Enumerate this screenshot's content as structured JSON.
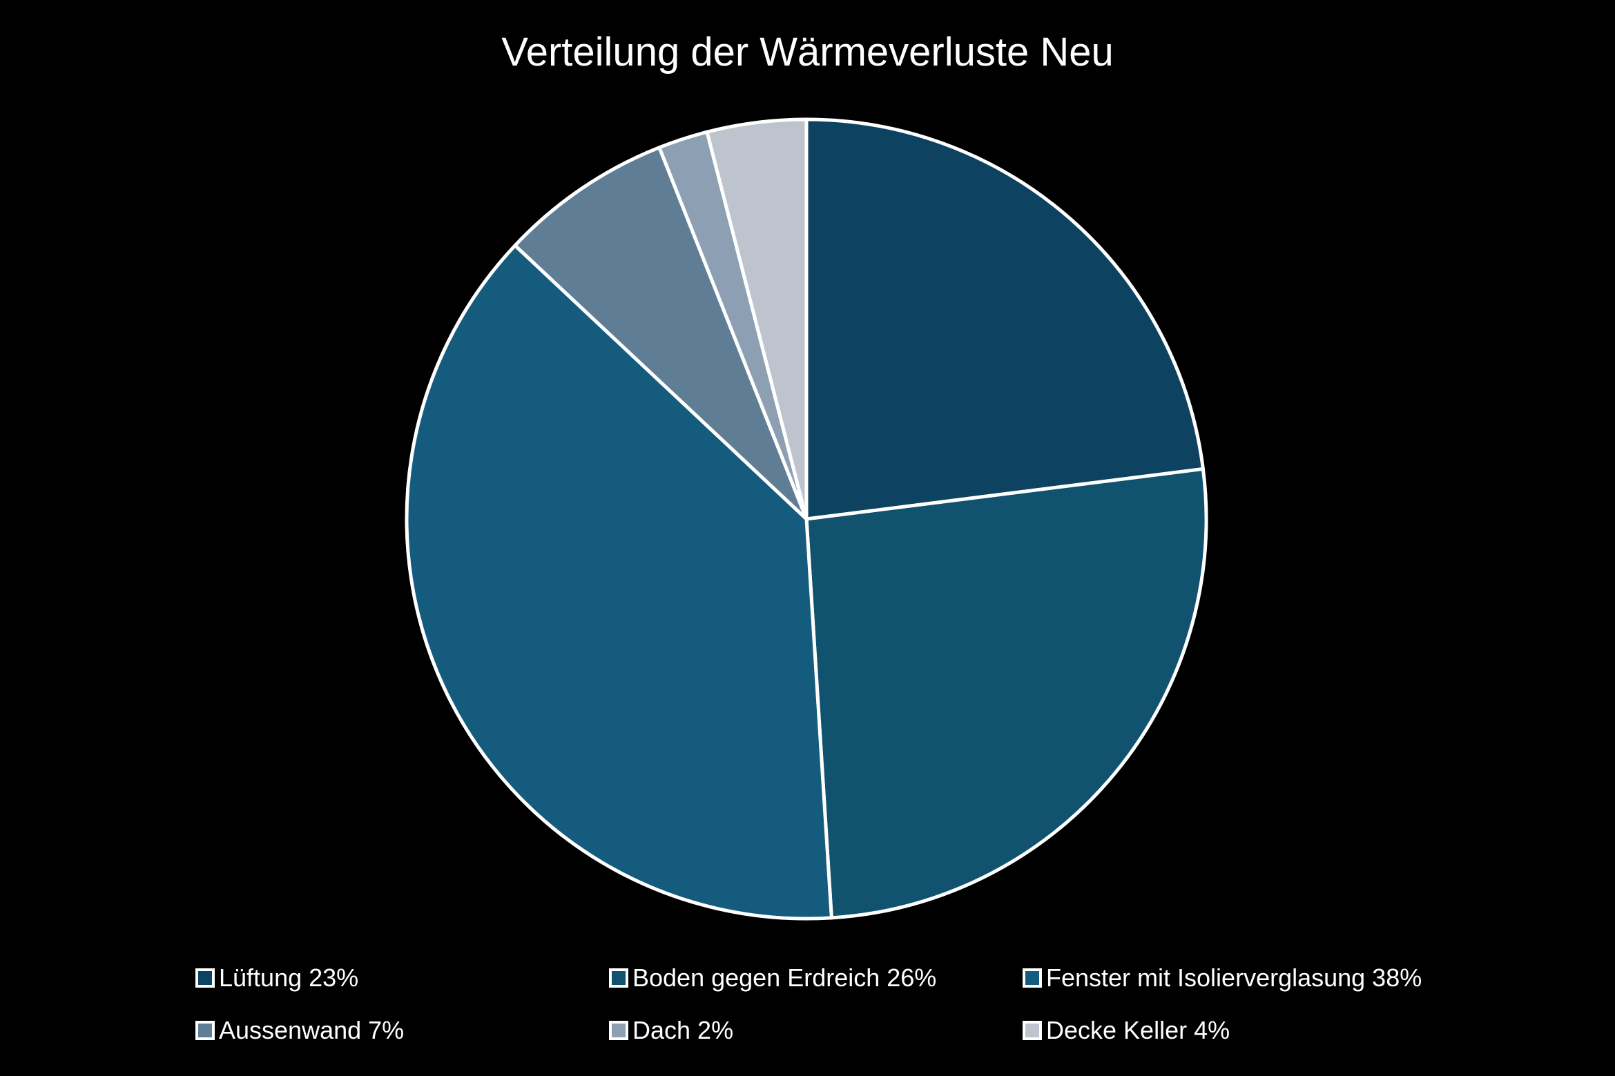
{
  "chart_data": {
    "type": "pie",
    "title": "Verteilung der Wärmeverluste Neu",
    "categories": [
      "Lüftung",
      "Boden gegen Erdreich",
      "Fenster mit Isolierverglasung",
      "Aussenwand",
      "Dach",
      "Decke Keller"
    ],
    "values": [
      23,
      26,
      38,
      7,
      2,
      4
    ],
    "unit": "%",
    "legend_labels": [
      "Lüftung 23%",
      "Boden gegen Erdreich 26%",
      "Fenster mit Isolierverglasung 38%",
      "Aussenwand 7%",
      "Dach 2%",
      "Decke Keller 4%"
    ],
    "colors": [
      "#0d4360",
      "#11526f",
      "#155b7e",
      "#5f7e96",
      "#8da0b3",
      "#bec4cd"
    ],
    "slice_border_color": "#ffffff",
    "background": "#000000",
    "legend_position": "bottom",
    "start_angle": "top",
    "direction": "clockwise"
  }
}
